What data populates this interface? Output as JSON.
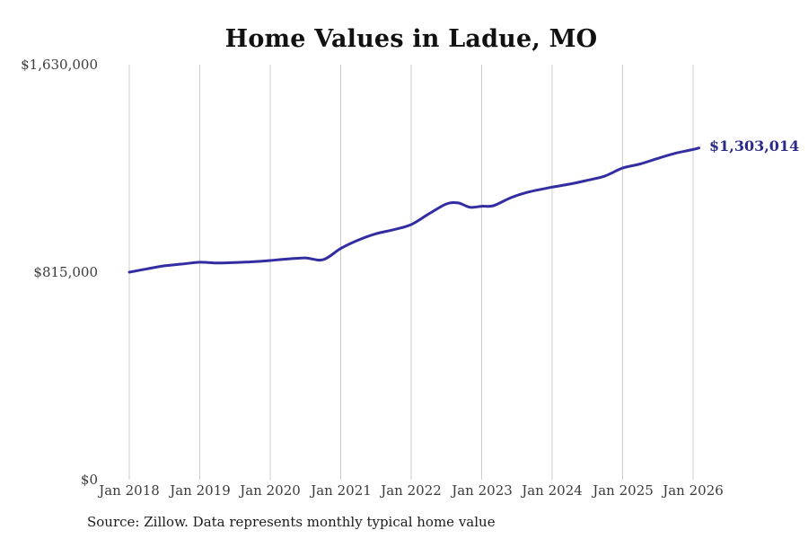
{
  "title": "Home Values in Ladue, MO",
  "source_note": "Source: Zillow. Data represents monthly typical home value",
  "colors": {
    "line": "#322da1",
    "grid": "#cccccc",
    "tick_text": "#3b3b3b",
    "end_label": "#2b2a8c",
    "title": "#111111",
    "background": "#ffffff"
  },
  "chart_data": {
    "type": "line",
    "title": "Home Values in Ladue, MO",
    "xlabel": "",
    "ylabel": "",
    "ylim": [
      0,
      1630000
    ],
    "grid": "vertical",
    "legend": "none",
    "end_label": "$1,303,014",
    "end_value": 1303014,
    "y_ticks": [
      {
        "value": 0,
        "label": "$0"
      },
      {
        "value": 815000,
        "label": "$815,000"
      },
      {
        "value": 1630000,
        "label": "$1,630,000"
      }
    ],
    "x_ticks": [
      {
        "date": "2018-01",
        "label": "Jan 2018"
      },
      {
        "date": "2019-01",
        "label": "Jan 2019"
      },
      {
        "date": "2020-01",
        "label": "Jan 2020"
      },
      {
        "date": "2021-01",
        "label": "Jan 2021"
      },
      {
        "date": "2022-01",
        "label": "Jan 2022"
      },
      {
        "date": "2023-01",
        "label": "Jan 2023"
      },
      {
        "date": "2024-01",
        "label": "Jan 2024"
      },
      {
        "date": "2025-01",
        "label": "Jan 2025"
      },
      {
        "date": "2026-01",
        "label": "Jan 2026"
      }
    ],
    "series": [
      {
        "name": "Monthly typical home value",
        "points": [
          [
            "2018-01",
            815000
          ],
          [
            "2018-04",
            828000
          ],
          [
            "2018-07",
            840000
          ],
          [
            "2018-10",
            847000
          ],
          [
            "2019-01",
            854000
          ],
          [
            "2019-04",
            851000
          ],
          [
            "2019-07",
            853000
          ],
          [
            "2019-10",
            856000
          ],
          [
            "2020-01",
            861000
          ],
          [
            "2020-04",
            867000
          ],
          [
            "2020-07",
            871000
          ],
          [
            "2020-10",
            864000
          ],
          [
            "2021-01",
            908000
          ],
          [
            "2021-04",
            941000
          ],
          [
            "2021-07",
            966000
          ],
          [
            "2021-10",
            982000
          ],
          [
            "2022-01",
            1002000
          ],
          [
            "2022-04",
            1044000
          ],
          [
            "2022-07",
            1083000
          ],
          [
            "2022-09",
            1087000
          ],
          [
            "2022-11",
            1070000
          ],
          [
            "2023-01",
            1074000
          ],
          [
            "2023-03",
            1076000
          ],
          [
            "2023-06",
            1108000
          ],
          [
            "2023-09",
            1130000
          ],
          [
            "2024-01",
            1149000
          ],
          [
            "2024-04",
            1161000
          ],
          [
            "2024-07",
            1176000
          ],
          [
            "2024-10",
            1193000
          ],
          [
            "2025-01",
            1224000
          ],
          [
            "2025-04",
            1240000
          ],
          [
            "2025-07",
            1262000
          ],
          [
            "2025-10",
            1282000
          ],
          [
            "2026-01",
            1297000
          ],
          [
            "2026-02",
            1303014
          ]
        ]
      }
    ]
  }
}
